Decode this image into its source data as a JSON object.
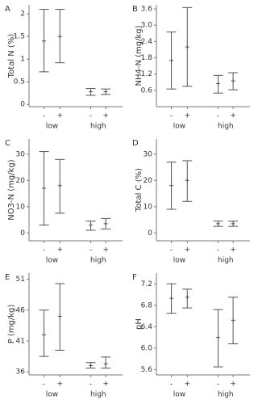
{
  "chart_data": [
    {
      "type": "errorbar",
      "label": "A",
      "ylabel": "Total N (%)",
      "categories": [
        "-",
        "+",
        "-",
        "+"
      ],
      "groups": [
        "low",
        "high"
      ],
      "values": [
        1.4,
        1.5,
        0.28,
        0.28
      ],
      "lower": [
        0.72,
        0.92,
        0.2,
        0.22
      ],
      "upper": [
        2.1,
        2.1,
        0.35,
        0.34
      ],
      "ylim": [
        -0.05,
        2.2
      ],
      "yticks": [
        0,
        0.5,
        1,
        1.5,
        2
      ],
      "color": "#555555"
    },
    {
      "type": "errorbar",
      "label": "B",
      "ylabel": "NH4-N (mg/kg)",
      "categories": [
        "-",
        "+",
        "-",
        "+"
      ],
      "groups": [
        "low",
        "high"
      ],
      "values": [
        1.7,
        2.2,
        0.85,
        0.95
      ],
      "lower": [
        0.65,
        0.75,
        0.5,
        0.62
      ],
      "upper": [
        2.75,
        3.65,
        1.15,
        1.25
      ],
      "ylim": [
        0,
        3.75
      ],
      "yticks": [
        0.6,
        1.2,
        1.8,
        2.4,
        {
          "value": 3,
          "label": "3.0"
        },
        3.6
      ],
      "color": "#555555"
    },
    {
      "type": "errorbar",
      "label": "C",
      "ylabel": "NO3-N (mg/kg)",
      "categories": [
        "-",
        "+",
        "-",
        "+"
      ],
      "groups": [
        "low",
        "high"
      ],
      "values": [
        17,
        18,
        3,
        3.5
      ],
      "lower": [
        3,
        7.5,
        1,
        1.5
      ],
      "upper": [
        31,
        28,
        4.5,
        5.5
      ],
      "ylim": [
        -3,
        35.8
      ],
      "yticks": [
        0,
        10,
        20,
        30
      ],
      "color": "#555555"
    },
    {
      "type": "errorbar",
      "label": "D",
      "ylabel": "Total C (%)",
      "categories": [
        "-",
        "+",
        "-",
        "+"
      ],
      "groups": [
        "low",
        "high"
      ],
      "values": [
        18,
        20,
        3.5,
        3.5
      ],
      "lower": [
        9,
        12,
        2.5,
        2.5
      ],
      "upper": [
        27,
        27.5,
        4.5,
        4.5
      ],
      "ylim": [
        -3,
        35.8
      ],
      "yticks": [
        0,
        10,
        20,
        30
      ],
      "color": "#555555"
    },
    {
      "type": "errorbar",
      "label": "E",
      "ylabel": "P (mg/kg)",
      "categories": [
        "-",
        "+",
        "-",
        "+"
      ],
      "groups": [
        "low",
        "high"
      ],
      "values": [
        42,
        45,
        37,
        37.3
      ],
      "lower": [
        38.5,
        39.5,
        36.6,
        36.6
      ],
      "upper": [
        46,
        50.3,
        37.5,
        38.4
      ],
      "ylim": [
        35.5,
        52
      ],
      "yticks": [
        36,
        41,
        46,
        51
      ],
      "color": "#555555"
    },
    {
      "type": "errorbar",
      "label": "F",
      "ylabel": "pH",
      "categories": [
        "-",
        "+",
        "-",
        "+"
      ],
      "groups": [
        "low",
        "high"
      ],
      "values": [
        6.93,
        6.95,
        6.2,
        6.52
      ],
      "lower": [
        6.65,
        6.75,
        5.65,
        6.08
      ],
      "upper": [
        7.2,
        7.1,
        6.72,
        6.95
      ],
      "ylim": [
        5.5,
        7.4
      ],
      "yticks": [
        5.6,
        {
          "value": 6,
          "label": "6.0"
        },
        6.4,
        6.8,
        7.2
      ],
      "color": "#555555"
    }
  ]
}
